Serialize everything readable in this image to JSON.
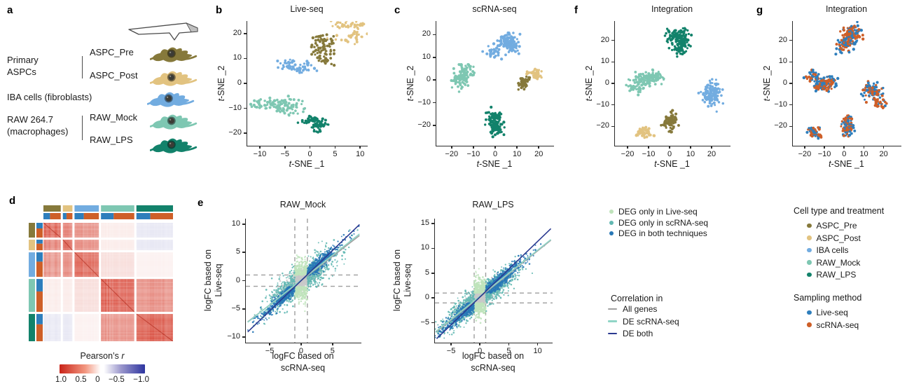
{
  "letters": {
    "a": "a",
    "b": "b",
    "c": "c",
    "d": "d",
    "e": "e",
    "f": "f",
    "g": "g"
  },
  "colors": {
    "ASPC_Pre": "#86793B",
    "ASPC_Post": "#E2C380",
    "IBA cells": "#72ACE0",
    "RAW_Mock": "#7EC7B2",
    "RAW_LPS": "#12826B",
    "Live-seq": "#2E7EBC",
    "scRNA-seq": "#CE5F28",
    "deg_live": "#BFE3BB",
    "deg_scrna": "#62B8B2",
    "deg_both": "#2878B6",
    "line_all": "#A0A0A0",
    "line_de_scrna": "#90D5C6",
    "line_de_both": "#2A3990",
    "all_genes_points": "#C9C9C9",
    "axis": "#2B2B2B",
    "guide": "#9E9E9E"
  },
  "panel_a": {
    "probe_icon": "afm-cantilever-probe",
    "cell_icon": "cell-blob",
    "group1_line1": "Primary",
    "group1_line2": "ASPCs",
    "item1": "ASPC_Pre",
    "item2": "ASPC_Post",
    "group2": "IBA cells (fibroblasts)",
    "group3_line1": "RAW 264.7",
    "group3_line2": "(macrophages)",
    "item3": "RAW_Mock",
    "item4": "RAW_LPS"
  },
  "legends": {
    "deg": {
      "items": [
        {
          "label": "DEG only in Live-seq",
          "color_key": "deg_live"
        },
        {
          "label": "DEG only in scRNA-seq",
          "color_key": "deg_scrna"
        },
        {
          "label": "DEG in both techniques",
          "color_key": "deg_both"
        }
      ]
    },
    "correlation": {
      "title": "Correlation in",
      "items": [
        {
          "label": "All genes",
          "color_key": "line_all"
        },
        {
          "label": "DE scRNA-seq",
          "color_key": "line_de_scrna"
        },
        {
          "label": "DE both",
          "color_key": "line_de_both"
        }
      ]
    },
    "cell_type": {
      "title": "Cell type and treatment",
      "items": [
        {
          "label": "ASPC_Pre",
          "color_key": "ASPC_Pre"
        },
        {
          "label": "ASPC_Post",
          "color_key": "ASPC_Post"
        },
        {
          "label": "IBA cells",
          "color_key": "IBA cells"
        },
        {
          "label": "RAW_Mock",
          "color_key": "RAW_Mock"
        },
        {
          "label": "RAW_LPS",
          "color_key": "RAW_LPS"
        }
      ]
    },
    "sampling": {
      "title": "Sampling method",
      "items": [
        {
          "label": "Live-seq",
          "color_key": "Live-seq"
        },
        {
          "label": "scRNA-seq",
          "color_key": "scRNA-seq"
        }
      ]
    }
  },
  "chart_data": [
    {
      "type": "scatter",
      "panel": "b",
      "title": "Live-seq",
      "xlabel": "t-SNE _1",
      "ylabel": "t-SNE _2",
      "xlabel_italic": "t",
      "xlabel_rest": "-SNE _1",
      "ylabel_italic": "t",
      "ylabel_rest": "-SNE _2",
      "xlim": [
        -12.5,
        11.5
      ],
      "ylim": [
        -25,
        25
      ],
      "xticks": [
        -10,
        -5,
        0,
        5,
        10
      ],
      "yticks": [
        -20,
        -10,
        0,
        10,
        20
      ],
      "clusters": [
        {
          "group": "ASPC_Pre",
          "n": 85,
          "cx": 4.0,
          "cy": 15.5,
          "sx": 2.0,
          "sy": 3.2
        },
        {
          "group": "ASPC_Post",
          "n": 70,
          "cx": 6.3,
          "cy": 19.2,
          "sx": 2.3,
          "sy": 2.0
        },
        {
          "group": "IBA cells",
          "n": 60,
          "cx": -3.2,
          "cy": 7.2,
          "sx": 2.4,
          "sy": 1.4
        },
        {
          "group": "RAW_Mock",
          "n": 120,
          "cx": -4.5,
          "cy": -10.5,
          "sx": 3.6,
          "sy": 2.3
        },
        {
          "group": "RAW_LPS",
          "n": 80,
          "cx": 1.3,
          "cy": -15.5,
          "sx": 1.7,
          "sy": 2.6
        }
      ]
    },
    {
      "type": "scatter",
      "panel": "c",
      "title": "scRNA-seq",
      "xlabel": "t-SNE _1",
      "ylabel": "t-SNE _2",
      "xlabel_italic": "t",
      "xlabel_rest": "-SNE _1",
      "ylabel_italic": "t",
      "ylabel_rest": "-SNE _2",
      "xlim": [
        -27,
        27
      ],
      "ylim": [
        -29,
        26
      ],
      "xticks": [
        -20,
        -10,
        0,
        10,
        20
      ],
      "yticks": [
        -20,
        -10,
        0,
        10,
        20
      ],
      "clusters": [
        {
          "group": "IBA cells",
          "n": 130,
          "cx": 4.5,
          "cy": 15.5,
          "sx": 4.2,
          "sy": 2.6
        },
        {
          "group": "RAW_Mock",
          "n": 120,
          "cx": -15,
          "cy": 1,
          "sx": 3.6,
          "sy": 3.4
        },
        {
          "group": "ASPC_Post",
          "n": 45,
          "cx": 18,
          "cy": 2.5,
          "sx": 2.2,
          "sy": 1.1
        },
        {
          "group": "ASPC_Pre",
          "n": 55,
          "cx": 15.5,
          "cy": -2,
          "sx": 2.2,
          "sy": 1.7
        },
        {
          "group": "RAW_LPS",
          "n": 130,
          "cx": 0,
          "cy": -19.5,
          "sx": 3.2,
          "sy": 3.0
        }
      ]
    },
    {
      "type": "scatter",
      "panel": "f",
      "title": "Integration",
      "xlabel": "t-SNE _1",
      "ylabel": "t-SNE _2",
      "xlabel_italic": "t",
      "xlabel_rest": "-SNE _1",
      "ylabel_italic": "t",
      "ylabel_rest": "-SNE _2",
      "xlim": [
        -26,
        29
      ],
      "ylim": [
        -29,
        29
      ],
      "xticks": [
        -20,
        -10,
        0,
        10,
        20
      ],
      "yticks": [
        -20,
        -10,
        0,
        10,
        20
      ],
      "clusters": [
        {
          "group": "RAW_LPS",
          "n": 160,
          "cx": 3,
          "cy": 20,
          "sx": 4.4,
          "sy": 3.6
        },
        {
          "group": "RAW_Mock",
          "n": 160,
          "cx": -12,
          "cy": 1,
          "sx": 5.2,
          "sy": 2.8
        },
        {
          "group": "IBA cells",
          "n": 120,
          "cx": 18.5,
          "cy": -4,
          "sx": 4.0,
          "sy": 3.4
        },
        {
          "group": "ASPC_Pre",
          "n": 95,
          "cx": 1,
          "cy": -17.5,
          "sx": 2.4,
          "sy": 3.4
        },
        {
          "group": "ASPC_Post",
          "n": 60,
          "cx": -13,
          "cy": -22.5,
          "sx": 2.6,
          "sy": 1.7
        }
      ]
    },
    {
      "type": "scatter",
      "panel": "g",
      "title": "Integration",
      "xlabel": "t-SNE _1",
      "ylabel": "t-SNE _2",
      "xlabel_italic": "t",
      "xlabel_rest": "-SNE _1",
      "ylabel_italic": "t",
      "ylabel_rest": "-SNE _2",
      "xlim": [
        -26,
        29
      ],
      "ylim": [
        -29,
        29
      ],
      "xticks": [
        -20,
        -10,
        0,
        10,
        20
      ],
      "yticks": [
        -20,
        -10,
        0,
        10,
        20
      ],
      "color_by": "sampling_method",
      "clusters": [
        {
          "group": "RAW_LPS",
          "mix": true,
          "n": 160,
          "cx": 3,
          "cy": 20,
          "sx": 4.4,
          "sy": 3.6
        },
        {
          "group": "RAW_Mock",
          "mix": true,
          "n": 160,
          "cx": -12,
          "cy": 1,
          "sx": 5.2,
          "sy": 2.8
        },
        {
          "group": "IBA cells",
          "mix": true,
          "n": 120,
          "cx": 18.5,
          "cy": -4,
          "sx": 4.0,
          "sy": 3.4
        },
        {
          "group": "ASPC_Pre",
          "mix": true,
          "n": 95,
          "cx": 1,
          "cy": -17.5,
          "sx": 2.4,
          "sy": 3.4
        },
        {
          "group": "ASPC_Post",
          "mix": true,
          "n": 60,
          "cx": -13,
          "cy": -22.5,
          "sx": 2.6,
          "sy": 1.7
        }
      ]
    },
    {
      "type": "heatmap",
      "panel": "d",
      "row_groups": [
        "ASPC_Pre",
        "ASPC_Post",
        "IBA cells",
        "RAW_Mock",
        "RAW_LPS"
      ],
      "col_groups": [
        "ASPC_Pre",
        "ASPC_Post",
        "IBA cells",
        "RAW_Mock",
        "RAW_LPS"
      ],
      "col_fractions": [
        0.143,
        0.079,
        0.201,
        0.275,
        0.302
      ],
      "row_fractions": [
        0.134,
        0.096,
        0.223,
        0.299,
        0.248
      ],
      "sampling_fraction_live": 0.38,
      "matrix_r": [
        [
          0.72,
          0.55,
          0.48,
          0.06,
          -0.08
        ],
        [
          0.55,
          0.68,
          0.5,
          0.06,
          -0.08
        ],
        [
          0.48,
          0.5,
          0.7,
          0.12,
          0.04
        ],
        [
          0.06,
          0.06,
          0.12,
          0.75,
          0.5
        ],
        [
          -0.08,
          -0.08,
          0.04,
          0.5,
          0.78
        ]
      ],
      "colorbar": {
        "title_main": "Pearson’s ",
        "title_italic": "r",
        "labels": [
          "1.0",
          "0.5",
          "0",
          "−0.5",
          "−1.0"
        ],
        "gradient": [
          "#C92318",
          "#FFFFFF",
          "#2E35A0"
        ]
      }
    },
    {
      "type": "scatter",
      "panel": "e",
      "title": "RAW_Mock",
      "xlabel": "logFC based on scRNA-seq",
      "ylabel": "logFC based on Live-seq",
      "xlabel_line1": "logFC based on",
      "xlabel_line2": "scRNA-seq",
      "ylabel_line1": "logFC based on",
      "ylabel_line2": "Live-seq",
      "xlim": [
        -8.8,
        9.6
      ],
      "ylim": [
        -11,
        11
      ],
      "xticks": [
        -5,
        0,
        5
      ],
      "yticks": [
        -10,
        -5,
        0,
        5,
        10
      ],
      "guides_x": [
        -1,
        1
      ],
      "guides_y": [
        -1,
        1
      ],
      "lines": [
        {
          "name": "All genes",
          "slope": 0.86,
          "intercept": 0,
          "color_key": "line_all"
        },
        {
          "name": "DE scRNA-seq",
          "slope": 0.88,
          "intercept": 0.1,
          "color_key": "line_de_scrna"
        },
        {
          "name": "DE both",
          "slope": 1.07,
          "intercept": 0,
          "color_key": "line_de_both"
        }
      ],
      "point_groups": [
        {
          "name": "All genes",
          "color_key": "all_genes_points",
          "kind": "diag",
          "n": 1500,
          "sx": 1.5,
          "slope": 0.8,
          "noise": 0.75
        },
        {
          "name": "DEG only in Live-seq",
          "color_key": "deg_live",
          "kind": "vband",
          "n": 420,
          "spread": 1.3
        },
        {
          "name": "DEG only in scRNA-seq",
          "color_key": "deg_scrna",
          "kind": "diag",
          "n": 700,
          "sx": 2.7,
          "slope": 0.8,
          "noise": 1.35,
          "min_abs_x": 1
        },
        {
          "name": "DEG in both techniques",
          "color_key": "deg_both",
          "kind": "diag",
          "n": 850,
          "sx": 2.8,
          "slope": 1.02,
          "noise": 0.6,
          "min_abs_x": 1,
          "min_abs_y": 1
        }
      ]
    },
    {
      "type": "scatter",
      "panel": "e",
      "title": "RAW_LPS",
      "xlabel": "logFC based on scRNA-seq",
      "ylabel": "logFC based on Live-seq",
      "xlabel_line1": "logFC based on",
      "xlabel_line2": "scRNA-seq",
      "ylabel_line1": "logFC based on",
      "ylabel_line2": "Live-seq",
      "xlim": [
        -7.8,
        12.6
      ],
      "ylim": [
        -9,
        16
      ],
      "xticks": [
        -5,
        0,
        5,
        10
      ],
      "yticks": [
        -5,
        0,
        5,
        10,
        15
      ],
      "guides_x": [
        -1,
        1
      ],
      "guides_y": [
        -1,
        1
      ],
      "lines": [
        {
          "name": "All genes",
          "slope": 0.93,
          "intercept": 0.2,
          "color_key": "line_all"
        },
        {
          "name": "DE scRNA-seq",
          "slope": 0.93,
          "intercept": 0.35,
          "color_key": "line_de_scrna"
        },
        {
          "name": "DE both",
          "slope": 1.12,
          "intercept": 0.2,
          "color_key": "line_de_both"
        }
      ],
      "point_groups": [
        {
          "name": "All genes",
          "color_key": "all_genes_points",
          "kind": "diag",
          "n": 1400,
          "sx": 1.6,
          "slope": 0.78,
          "noise": 0.75
        },
        {
          "name": "DEG only in Live-seq",
          "color_key": "deg_live",
          "kind": "vband",
          "n": 450,
          "spread": 1.5
        },
        {
          "name": "DEG only in scRNA-seq",
          "color_key": "deg_scrna",
          "kind": "diag",
          "n": 800,
          "sx": 3.0,
          "slope": 0.85,
          "noise": 1.3,
          "min_abs_x": 1
        },
        {
          "name": "DEG in both techniques",
          "color_key": "deg_both",
          "kind": "diag",
          "n": 950,
          "sx": 3.3,
          "slope": 1.0,
          "noise": 0.7,
          "min_abs_x": 1,
          "min_abs_y": 1,
          "xmean": 0.4
        }
      ]
    }
  ]
}
